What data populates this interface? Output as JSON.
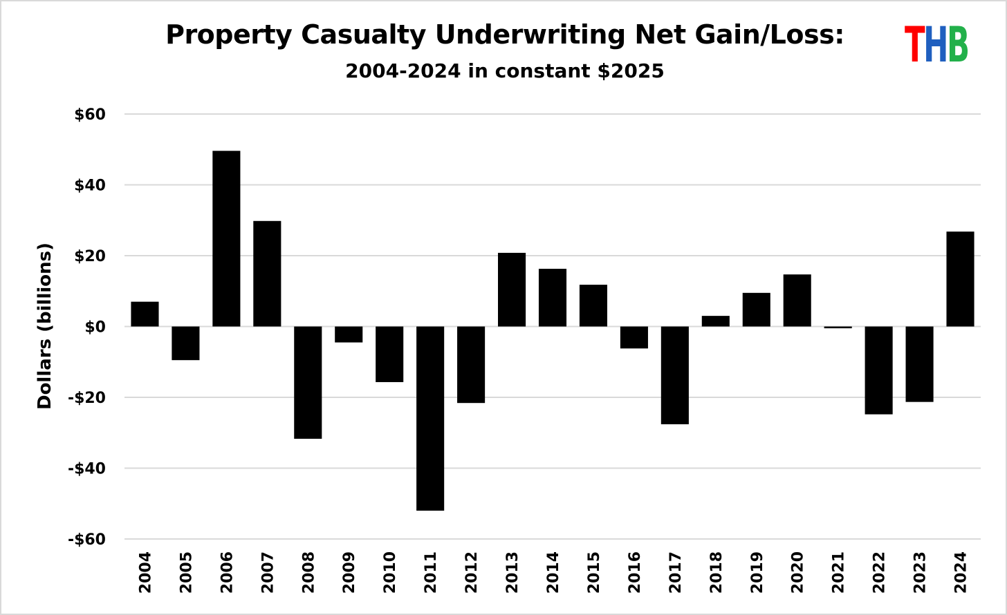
{
  "chart_data": {
    "type": "bar",
    "title": "Property Casualty Underwriting Net Gain/Loss:",
    "subtitle": "2004-2024 in constant $2025",
    "logo": {
      "letters": [
        "T",
        "H",
        "B"
      ],
      "colors": [
        "#ff0000",
        "#1f5fbf",
        "#22b04a"
      ]
    },
    "xlabel": "",
    "ylabel": "Dollars (billions)",
    "ylim": [
      -60,
      60
    ],
    "yticks": [
      60,
      40,
      20,
      0,
      -20,
      -40,
      -60
    ],
    "ytick_labels": [
      "$60",
      "$40",
      "$20",
      "$0",
      "-$20",
      "-$40",
      "-$60"
    ],
    "grid": true,
    "categories": [
      "2004",
      "2005",
      "2006",
      "2007",
      "2008",
      "2009",
      "2010",
      "2011",
      "2012",
      "2013",
      "2014",
      "2015",
      "2016",
      "2017",
      "2018",
      "2019",
      "2020",
      "2021",
      "2022",
      "2023",
      "2024"
    ],
    "values": [
      7,
      -9.5,
      49.6,
      29.8,
      -31.7,
      -4.5,
      -15.7,
      -52,
      -21.6,
      20.8,
      16.3,
      11.8,
      -6.2,
      -27.6,
      3,
      9.5,
      14.7,
      -0.5,
      -24.8,
      -21.3,
      26.8
    ],
    "bar_color": "#000000",
    "grid_color": "#d9d9d9"
  }
}
